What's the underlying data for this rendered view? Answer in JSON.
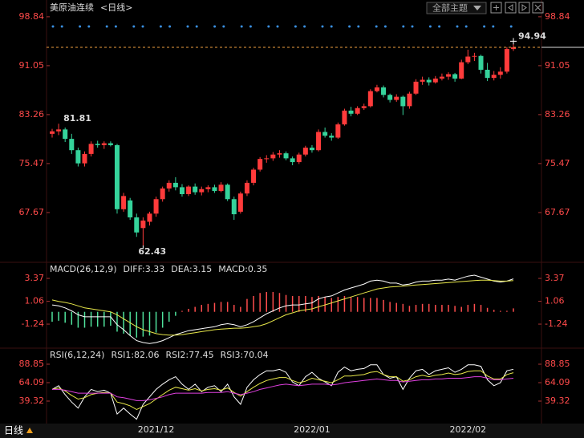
{
  "toolbar": {
    "theme_button": "全部主题"
  },
  "footer": {
    "period": "日线"
  },
  "chart_data": [
    {
      "type": "candlestick",
      "title": "美原油连续",
      "subtitle": "<日线>",
      "up_color": "#ff3b3b",
      "down_color": "#35d39b",
      "ylim": [
        60,
        99.72
      ],
      "yticks": [
        67.67,
        75.47,
        83.26,
        91.05,
        98.84
      ],
      "categories": [
        null,
        null,
        null,
        null,
        null,
        null,
        null,
        null,
        null,
        null,
        null,
        null,
        null,
        null,
        null,
        null,
        "2021/12",
        null,
        null,
        null,
        null,
        null,
        null,
        null,
        null,
        null,
        null,
        null,
        null,
        null,
        null,
        null,
        null,
        null,
        null,
        null,
        null,
        null,
        null,
        null,
        "2022/01",
        null,
        null,
        null,
        null,
        null,
        null,
        null,
        null,
        null,
        null,
        null,
        null,
        null,
        null,
        null,
        null,
        null,
        null,
        null,
        null,
        null,
        null,
        null,
        "2022/02",
        null,
        null,
        null,
        null,
        null,
        null,
        null
      ],
      "ohlc": [
        [
          80.2,
          81.0,
          79.6,
          80.6
        ],
        [
          80.6,
          81.81,
          80.0,
          80.9
        ],
        [
          80.9,
          81.2,
          78.9,
          79.4
        ],
        [
          79.4,
          80.2,
          77.0,
          77.6
        ],
        [
          77.6,
          78.0,
          75.0,
          75.5
        ],
        [
          75.5,
          77.4,
          75.0,
          77.0
        ],
        [
          77.0,
          79.0,
          76.6,
          78.6
        ],
        [
          78.6,
          79.1,
          78.0,
          78.4
        ],
        [
          78.4,
          79.0,
          77.8,
          78.7
        ],
        [
          78.7,
          79.0,
          78.2,
          78.4
        ],
        [
          78.4,
          78.6,
          67.5,
          68.2
        ],
        [
          68.2,
          70.8,
          67.8,
          70.3
        ],
        [
          69.6,
          70.0,
          66.5,
          66.9
        ],
        [
          66.9,
          67.5,
          63.8,
          64.5
        ],
        [
          65.2,
          66.9,
          62.43,
          66.4
        ],
        [
          66.2,
          67.8,
          65.6,
          67.5
        ],
        [
          67.5,
          70.2,
          67.0,
          69.8
        ],
        [
          69.8,
          71.8,
          69.4,
          71.5
        ],
        [
          71.5,
          72.8,
          71.0,
          72.4
        ],
        [
          72.4,
          73.3,
          71.2,
          71.7
        ],
        [
          71.7,
          72.2,
          70.2,
          70.6
        ],
        [
          70.6,
          72.0,
          70.3,
          71.8
        ],
        [
          71.8,
          72.3,
          70.5,
          70.9
        ],
        [
          70.9,
          71.8,
          70.4,
          71.4
        ],
        [
          71.4,
          72.0,
          70.9,
          71.7
        ],
        [
          71.7,
          72.1,
          70.8,
          71.1
        ],
        [
          71.1,
          72.5,
          70.9,
          72.1
        ],
        [
          72.1,
          72.3,
          69.5,
          69.8
        ],
        [
          69.8,
          70.2,
          66.5,
          67.4
        ],
        [
          67.8,
          71.0,
          67.5,
          70.7
        ],
        [
          70.7,
          72.8,
          70.3,
          72.4
        ],
        [
          72.4,
          74.8,
          72.0,
          74.5
        ],
        [
          74.5,
          76.5,
          74.2,
          76.2
        ],
        [
          76.2,
          76.8,
          75.6,
          76.3
        ],
        [
          76.3,
          77.3,
          75.9,
          76.9
        ],
        [
          76.9,
          77.6,
          76.4,
          77.1
        ],
        [
          77.1,
          77.4,
          76.0,
          76.3
        ],
        [
          76.3,
          76.6,
          75.2,
          75.7
        ],
        [
          75.7,
          77.2,
          75.4,
          76.9
        ],
        [
          76.9,
          78.3,
          76.6,
          78.0
        ],
        [
          78.0,
          78.4,
          77.2,
          77.6
        ],
        [
          77.6,
          80.9,
          77.4,
          80.5
        ],
        [
          80.5,
          81.2,
          79.6,
          79.9
        ],
        [
          79.9,
          80.3,
          79.1,
          79.6
        ],
        [
          79.6,
          82.0,
          79.4,
          81.7
        ],
        [
          81.7,
          84.2,
          81.5,
          83.9
        ],
        [
          83.9,
          84.5,
          83.0,
          83.4
        ],
        [
          83.4,
          84.6,
          83.2,
          84.3
        ],
        [
          84.3,
          85.0,
          84.0,
          84.6
        ],
        [
          84.6,
          87.3,
          84.4,
          87.0
        ],
        [
          87.0,
          88.0,
          86.8,
          87.6
        ],
        [
          87.6,
          87.9,
          86.0,
          86.4
        ],
        [
          86.4,
          86.6,
          85.2,
          85.6
        ],
        [
          85.6,
          86.5,
          85.3,
          86.1
        ],
        [
          86.1,
          86.3,
          83.2,
          84.6
        ],
        [
          84.6,
          86.9,
          84.2,
          86.6
        ],
        [
          86.6,
          88.9,
          86.4,
          88.5
        ],
        [
          88.5,
          89.3,
          88.0,
          88.8
        ],
        [
          88.8,
          89.2,
          87.9,
          88.4
        ],
        [
          88.4,
          89.4,
          88.2,
          89.0
        ],
        [
          89.0,
          89.8,
          88.7,
          89.3
        ],
        [
          89.3,
          90.0,
          88.8,
          89.7
        ],
        [
          89.7,
          89.9,
          88.5,
          89.0
        ],
        [
          89.0,
          92.0,
          88.9,
          91.6
        ],
        [
          91.6,
          93.6,
          91.3,
          92.5
        ],
        [
          92.5,
          93.1,
          91.8,
          92.6
        ],
        [
          92.6,
          92.8,
          89.8,
          90.4
        ],
        [
          90.4,
          91.5,
          88.6,
          89.1
        ],
        [
          89.1,
          90.2,
          88.7,
          89.6
        ],
        [
          89.6,
          90.8,
          89.0,
          90.1
        ],
        [
          90.1,
          94.0,
          89.8,
          93.7
        ],
        [
          93.7,
          94.94,
          93.4,
          93.97
        ]
      ]
    },
    {
      "type": "macd",
      "title": "MACD(26,12,9)",
      "up_color": "#ff4d4d",
      "down_color": "#4fe39c",
      "ylim": [
        -3.34,
        4.75
      ],
      "yticks": [
        3.37,
        1.06,
        -1.24
      ],
      "series": [
        {
          "name": "DIFF:3.33",
          "color": "#ffffff",
          "values": [
            0.7,
            0.6,
            0.4,
            0.1,
            -0.3,
            -0.5,
            -0.5,
            -0.5,
            -0.5,
            -0.5,
            -1.3,
            -1.8,
            -2.4,
            -2.9,
            -3.1,
            -3.2,
            -3.1,
            -2.9,
            -2.6,
            -2.3,
            -2.1,
            -1.9,
            -1.8,
            -1.7,
            -1.6,
            -1.5,
            -1.3,
            -1.2,
            -1.3,
            -1.5,
            -1.3,
            -1.0,
            -0.6,
            -0.2,
            0.1,
            0.4,
            0.6,
            0.7,
            0.7,
            0.8,
            0.9,
            1.3,
            1.5,
            1.6,
            1.9,
            2.2,
            2.4,
            2.6,
            2.8,
            3.1,
            3.2,
            3.1,
            2.9,
            2.9,
            2.7,
            2.8,
            3.0,
            3.1,
            3.1,
            3.2,
            3.2,
            3.3,
            3.2,
            3.4,
            3.6,
            3.7,
            3.5,
            3.3,
            3.1,
            3.0,
            3.1,
            3.33
          ]
        },
        {
          "name": "DEA:3.15",
          "color": "#e8e84a",
          "values": [
            1.2,
            1.05,
            0.95,
            0.8,
            0.6,
            0.4,
            0.3,
            0.2,
            0.1,
            0.0,
            -0.3,
            -0.7,
            -1.1,
            -1.5,
            -1.8,
            -2.0,
            -2.2,
            -2.3,
            -2.35,
            -2.35,
            -2.3,
            -2.2,
            -2.1,
            -2.0,
            -1.9,
            -1.8,
            -1.75,
            -1.7,
            -1.65,
            -1.65,
            -1.6,
            -1.5,
            -1.4,
            -1.2,
            -0.9,
            -0.6,
            -0.3,
            -0.1,
            0.1,
            0.2,
            0.3,
            0.5,
            0.7,
            0.9,
            1.1,
            1.3,
            1.5,
            1.7,
            1.9,
            2.1,
            2.3,
            2.4,
            2.5,
            2.55,
            2.6,
            2.65,
            2.7,
            2.75,
            2.8,
            2.85,
            2.9,
            2.95,
            3.0,
            3.05,
            3.1,
            3.15,
            3.2,
            3.2,
            3.15,
            3.1,
            3.1,
            3.15
          ]
        },
        {
          "name": "MACD:0.35",
          "color": "#e040e0",
          "type": "bar",
          "values": [
            -1.0,
            -0.9,
            -1.1,
            -1.3,
            -1.6,
            -1.6,
            -1.5,
            -1.5,
            -1.5,
            -1.4,
            -2.0,
            -2.2,
            -2.4,
            -2.6,
            -2.5,
            -2.4,
            -2.1,
            -1.6,
            -1.0,
            -0.4,
            0.1,
            0.3,
            0.5,
            0.7,
            0.8,
            0.9,
            1.0,
            1.0,
            0.7,
            0.5,
            1.3,
            1.6,
            1.9,
            2.0,
            2.0,
            1.9,
            1.7,
            1.6,
            1.6,
            1.6,
            1.5,
            1.6,
            1.5,
            1.4,
            1.5,
            1.6,
            1.5,
            1.5,
            1.4,
            1.4,
            1.4,
            1.2,
            1.0,
            0.9,
            0.8,
            0.6,
            0.7,
            0.8,
            0.8,
            0.7,
            0.7,
            0.7,
            0.6,
            0.5,
            0.7,
            0.8,
            0.7,
            0.4,
            0.2,
            0.1,
            0.1,
            0.35
          ]
        }
      ]
    },
    {
      "type": "line",
      "title": "RSI(6,12,24)",
      "ylim": [
        9.17,
        101.77
      ],
      "yticks": [
        88.85,
        64.09,
        39.32
      ],
      "series": [
        {
          "name": "RSI1:82.06",
          "color": "#ffffff",
          "values": [
            55,
            60,
            48,
            38,
            30,
            45,
            55,
            52,
            54,
            50,
            22,
            30,
            22,
            15,
            35,
            45,
            55,
            62,
            68,
            72,
            62,
            55,
            62,
            52,
            58,
            60,
            52,
            62,
            45,
            35,
            58,
            68,
            75,
            80,
            80,
            82,
            78,
            65,
            60,
            72,
            78,
            70,
            65,
            60,
            78,
            85,
            80,
            82,
            83,
            88,
            88,
            75,
            70,
            72,
            55,
            70,
            80,
            82,
            75,
            80,
            82,
            84,
            78,
            82,
            88,
            88,
            86,
            68,
            60,
            64,
            80,
            82.06
          ]
        },
        {
          "name": "RSI2:77.45",
          "color": "#e8e84a",
          "values": [
            55,
            57,
            53,
            47,
            42,
            44,
            48,
            50,
            51,
            50,
            38,
            36,
            33,
            28,
            32,
            36,
            42,
            48,
            54,
            58,
            56,
            54,
            56,
            53,
            55,
            56,
            54,
            57,
            51,
            46,
            52,
            58,
            63,
            67,
            69,
            71,
            71,
            67,
            64,
            66,
            70,
            68,
            66,
            64,
            68,
            73,
            73,
            74,
            75,
            78,
            79,
            75,
            72,
            72,
            66,
            68,
            72,
            74,
            72,
            74,
            75,
            77,
            75,
            76,
            79,
            80,
            80,
            73,
            69,
            69,
            75,
            77.45
          ]
        },
        {
          "name": "RSI3:70.04",
          "color": "#e040e0",
          "values": [
            55,
            55,
            54,
            52,
            50,
            50,
            50,
            50,
            50,
            50,
            45,
            44,
            42,
            40,
            40,
            41,
            43,
            45,
            48,
            50,
            50,
            50,
            50,
            50,
            51,
            51,
            51,
            52,
            50,
            48,
            50,
            52,
            55,
            57,
            59,
            61,
            62,
            61,
            60,
            61,
            62,
            62,
            62,
            61,
            62,
            64,
            65,
            66,
            67,
            68,
            69,
            68,
            67,
            67,
            65,
            66,
            67,
            68,
            68,
            69,
            69,
            70,
            70,
            70,
            71,
            72,
            72,
            70,
            68,
            68,
            69,
            70.04
          ]
        }
      ]
    }
  ]
}
